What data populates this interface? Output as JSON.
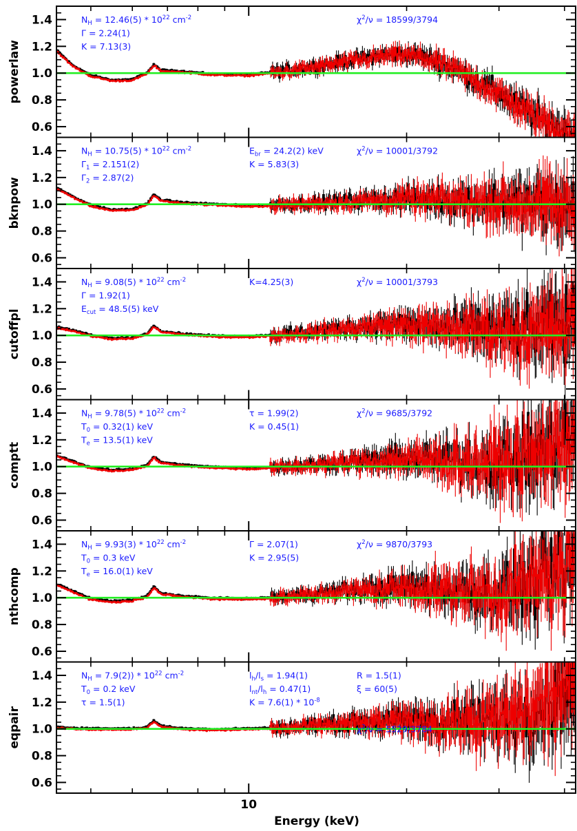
{
  "chart_data": {
    "type": "line",
    "x_axis": {
      "label": "Energy (keV)",
      "scale": "log",
      "range": [
        4.3,
        42
      ],
      "tick_labels": [
        "10"
      ],
      "major_ticks": [
        10
      ],
      "minor_ticks": [
        5,
        6,
        7,
        8,
        9,
        20,
        30,
        40
      ]
    },
    "y_axis": {
      "range": [
        0.52,
        1.5
      ],
      "tick_labels": [
        "0.6",
        "0.8",
        "1.0",
        "1.2",
        "1.4"
      ],
      "ticks": [
        0.6,
        0.8,
        1.0,
        1.2,
        1.4
      ]
    },
    "reference_line": {
      "y": 1.0,
      "color": "#22ee22"
    },
    "series_colors": {
      "data_a": "#000000",
      "data_b": "#ee0000"
    },
    "panels": [
      {
        "ylabel": "powerlaw",
        "annotations": [
          {
            "col": 0,
            "row": 0,
            "text": "N_{H} = 12.46(5) * 10^{22} cm^{-2}"
          },
          {
            "col": 0,
            "row": 1,
            "text": "Γ = 2.24(1)"
          },
          {
            "col": 0,
            "row": 2,
            "text": "K = 7.13(3)"
          },
          {
            "col": 2,
            "row": 0,
            "text": "χ^{2}/ν = 18599/3794"
          }
        ],
        "ratio_trend": [
          [
            4.3,
            1.17
          ],
          [
            4.6,
            1.06
          ],
          [
            5.0,
            0.98
          ],
          [
            5.5,
            0.945
          ],
          [
            6.0,
            0.95
          ],
          [
            6.4,
            1.0
          ],
          [
            6.6,
            1.06
          ],
          [
            6.8,
            1.02
          ],
          [
            7.5,
            1.01
          ],
          [
            8.5,
            0.99
          ],
          [
            10,
            0.985
          ],
          [
            12,
            1.02
          ],
          [
            15,
            1.08
          ],
          [
            18,
            1.13
          ],
          [
            20,
            1.14
          ],
          [
            22,
            1.11
          ],
          [
            25,
            1.02
          ],
          [
            30,
            0.85
          ],
          [
            35,
            0.68
          ],
          [
            40,
            0.57
          ],
          [
            42,
            0.54
          ]
        ],
        "scatter_from_keV": 11,
        "scatter_amplitude": [
          0.04,
          0.12
        ]
      },
      {
        "ylabel": "bknpow",
        "annotations": [
          {
            "col": 0,
            "row": 0,
            "text": "N_{H} = 10.75(5) * 10^{22} cm^{-2}"
          },
          {
            "col": 0,
            "row": 1,
            "text": "Γ_{1} = 2.151(2)"
          },
          {
            "col": 0,
            "row": 2,
            "text": "Γ_{2} = 2.87(2)"
          },
          {
            "col": 1,
            "row": 0,
            "text": "E_{br} = 24.2(2) keV"
          },
          {
            "col": 1,
            "row": 1,
            "text": "K = 5.83(3)"
          },
          {
            "col": 2,
            "row": 0,
            "text": "χ^{2}/ν = 10001/3792"
          }
        ],
        "ratio_trend": [
          [
            4.3,
            1.12
          ],
          [
            4.6,
            1.06
          ],
          [
            5.0,
            0.99
          ],
          [
            5.5,
            0.955
          ],
          [
            6.0,
            0.96
          ],
          [
            6.4,
            1.0
          ],
          [
            6.6,
            1.07
          ],
          [
            6.8,
            1.03
          ],
          [
            7.5,
            1.01
          ],
          [
            8.5,
            1.0
          ],
          [
            10,
            0.985
          ],
          [
            12,
            1.0
          ],
          [
            15,
            1.02
          ],
          [
            20,
            1.04
          ],
          [
            25,
            1.03
          ],
          [
            30,
            1.02
          ],
          [
            35,
            1.0
          ],
          [
            40,
            0.97
          ],
          [
            42,
            0.96
          ]
        ],
        "scatter_from_keV": 11,
        "scatter_amplitude": [
          0.04,
          0.22
        ]
      },
      {
        "ylabel": "cutoffpl",
        "annotations": [
          {
            "col": 0,
            "row": 0,
            "text": "N_{H} = 9.08(5) * 10^{22} cm^{-2}"
          },
          {
            "col": 0,
            "row": 1,
            "text": "Γ = 1.92(1)"
          },
          {
            "col": 0,
            "row": 2,
            "text": "E_{cut} = 48.5(5) keV"
          },
          {
            "col": 1,
            "row": 0,
            "text": "K=4.25(3)"
          },
          {
            "col": 2,
            "row": 0,
            "text": "χ^{2}/ν = 10001/3793"
          }
        ],
        "ratio_trend": [
          [
            4.3,
            1.06
          ],
          [
            4.6,
            1.04
          ],
          [
            5.0,
            1.0
          ],
          [
            5.5,
            0.975
          ],
          [
            6.0,
            0.98
          ],
          [
            6.4,
            1.01
          ],
          [
            6.6,
            1.07
          ],
          [
            6.8,
            1.03
          ],
          [
            7.5,
            1.01
          ],
          [
            8.5,
            0.995
          ],
          [
            10,
            0.99
          ],
          [
            12,
            1.01
          ],
          [
            15,
            1.05
          ],
          [
            18,
            1.08
          ],
          [
            20,
            1.08
          ],
          [
            25,
            1.05
          ],
          [
            30,
            1.04
          ],
          [
            35,
            1.03
          ],
          [
            40,
            1.06
          ],
          [
            42,
            1.1
          ]
        ],
        "scatter_from_keV": 11,
        "scatter_amplitude": [
          0.04,
          0.28
        ]
      },
      {
        "ylabel": "comptt",
        "annotations": [
          {
            "col": 0,
            "row": 0,
            "text": "N_{H} = 9.78(5) * 10^{22} cm^{-2}"
          },
          {
            "col": 0,
            "row": 1,
            "text": "T_{0} = 0.32(1) keV"
          },
          {
            "col": 0,
            "row": 2,
            "text": "T_{e} = 13.5(1) keV"
          },
          {
            "col": 1,
            "row": 0,
            "text": "τ = 1.99(2)"
          },
          {
            "col": 1,
            "row": 1,
            "text": "K = 0.45(1)"
          },
          {
            "col": 2,
            "row": 0,
            "text": "χ^{2}/ν = 9685/3792"
          }
        ],
        "ratio_trend": [
          [
            4.3,
            1.08
          ],
          [
            4.6,
            1.04
          ],
          [
            5.0,
            0.99
          ],
          [
            5.5,
            0.97
          ],
          [
            6.0,
            0.98
          ],
          [
            6.4,
            1.01
          ],
          [
            6.6,
            1.07
          ],
          [
            6.8,
            1.03
          ],
          [
            7.5,
            1.01
          ],
          [
            8.5,
            0.995
          ],
          [
            10,
            0.985
          ],
          [
            12,
            1.0
          ],
          [
            15,
            1.03
          ],
          [
            20,
            1.06
          ],
          [
            25,
            1.04
          ],
          [
            30,
            1.03
          ],
          [
            35,
            1.08
          ],
          [
            40,
            1.2
          ],
          [
            42,
            1.25
          ]
        ],
        "scatter_from_keV": 11,
        "scatter_amplitude": [
          0.04,
          0.32
        ]
      },
      {
        "ylabel": "nthcomp",
        "annotations": [
          {
            "col": 0,
            "row": 0,
            "text": "N_{H} = 9.93(3) * 10^{22} cm^{-2}"
          },
          {
            "col": 0,
            "row": 1,
            "text": "T_{0} = 0.3 keV"
          },
          {
            "col": 0,
            "row": 2,
            "text": "T_{e} = 16.0(1) keV"
          },
          {
            "col": 1,
            "row": 0,
            "text": "Γ = 2.07(1)"
          },
          {
            "col": 1,
            "row": 1,
            "text": "K = 2.95(5)"
          },
          {
            "col": 2,
            "row": 0,
            "text": "χ^{2}/ν = 9870/3793"
          }
        ],
        "ratio_trend": [
          [
            4.3,
            1.1
          ],
          [
            4.6,
            1.05
          ],
          [
            5.0,
            0.99
          ],
          [
            5.5,
            0.97
          ],
          [
            6.0,
            0.98
          ],
          [
            6.4,
            1.01
          ],
          [
            6.6,
            1.08
          ],
          [
            6.8,
            1.03
          ],
          [
            7.5,
            1.01
          ],
          [
            8.5,
            0.995
          ],
          [
            10,
            0.99
          ],
          [
            12,
            1.01
          ],
          [
            15,
            1.05
          ],
          [
            20,
            1.08
          ],
          [
            25,
            1.05
          ],
          [
            30,
            1.04
          ],
          [
            35,
            1.1
          ],
          [
            40,
            1.22
          ],
          [
            42,
            1.28
          ]
        ],
        "scatter_from_keV": 11,
        "scatter_amplitude": [
          0.04,
          0.32
        ]
      },
      {
        "ylabel": "eqpair",
        "annotations": [
          {
            "col": 0,
            "row": 0,
            "text": "N_{H} = 7.9(2)) * 10^{22} cm^{-2}"
          },
          {
            "col": 0,
            "row": 1,
            "text": "T_{0} = 0.2 keV"
          },
          {
            "col": 0,
            "row": 2,
            "text": "τ = 1.5(1)"
          },
          {
            "col": 1,
            "row": 0,
            "text": "l_{h}/l_{s} = 1.94(1)"
          },
          {
            "col": 1,
            "row": 1,
            "text": "l_{nt}/l_{h} = 0.47(1)"
          },
          {
            "col": 1,
            "row": 2,
            "text": "K = 7.6(1) * 10^{-8}"
          },
          {
            "col": 2,
            "row": 0,
            "text": "R = 1.5(1)"
          },
          {
            "col": 2,
            "row": 1,
            "text": "ξ = 60(5)"
          },
          {
            "col": 2,
            "row": 4,
            "text": "χ^{2}/ν = 5529/3784"
          }
        ],
        "ratio_trend": [
          [
            4.3,
            1.01
          ],
          [
            5.0,
            1.0
          ],
          [
            6.0,
            1.0
          ],
          [
            6.4,
            1.01
          ],
          [
            6.6,
            1.06
          ],
          [
            6.8,
            1.02
          ],
          [
            7.5,
            1.0
          ],
          [
            8.5,
            0.995
          ],
          [
            10,
            1.0
          ],
          [
            12,
            1.01
          ],
          [
            15,
            1.04
          ],
          [
            20,
            1.06
          ],
          [
            25,
            1.05
          ],
          [
            30,
            1.06
          ],
          [
            35,
            1.15
          ],
          [
            40,
            1.3
          ],
          [
            42,
            1.35
          ]
        ],
        "scatter_from_keV": 11,
        "scatter_amplitude": [
          0.04,
          0.32
        ]
      }
    ]
  }
}
